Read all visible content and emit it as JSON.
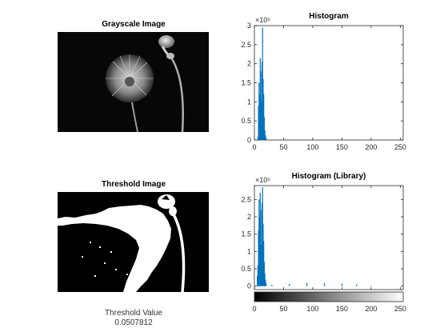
{
  "panels": {
    "grayscale_title": "Grayscale Image",
    "threshold_title": "Threshold Image",
    "threshold_value_label": "Threshold Value",
    "threshold_value": "0.0507812"
  },
  "chart_data": [
    {
      "type": "histogram",
      "title": "Histogram",
      "xlim": [
        0,
        255
      ],
      "ylim": [
        0,
        300000
      ],
      "x_ticks": [
        0,
        50,
        100,
        150,
        200,
        250
      ],
      "y_ticks": [
        0,
        0.5,
        1,
        1.5,
        2,
        2.5,
        3
      ],
      "y_exponent_label": "×10⁵",
      "bins": [
        {
          "x": 6,
          "y": 8000
        },
        {
          "x": 7,
          "y": 90000
        },
        {
          "x": 8,
          "y": 150000
        },
        {
          "x": 9,
          "y": 120000
        },
        {
          "x": 10,
          "y": 215000
        },
        {
          "x": 11,
          "y": 180000
        },
        {
          "x": 12,
          "y": 100000
        },
        {
          "x": 13,
          "y": 205000
        },
        {
          "x": 14,
          "y": 295000
        },
        {
          "x": 15,
          "y": 160000
        },
        {
          "x": 16,
          "y": 120000
        },
        {
          "x": 17,
          "y": 60000
        },
        {
          "x": 18,
          "y": 25000
        },
        {
          "x": 19,
          "y": 12000
        },
        {
          "x": 20,
          "y": 6000
        }
      ]
    },
    {
      "type": "histogram",
      "title": "Histogram (Library)",
      "xlim": [
        0,
        255
      ],
      "ylim": [
        -10000,
        290000
      ],
      "x_ticks": [
        0,
        50,
        100,
        150,
        200,
        250
      ],
      "y_ticks": [
        0,
        0.5,
        1,
        1.5,
        2,
        2.5
      ],
      "y_exponent_label": "×10⁵",
      "has_colorbar": true,
      "bins": [
        {
          "x": 5,
          "y": 30000
        },
        {
          "x": 6,
          "y": 60000
        },
        {
          "x": 7,
          "y": 160000
        },
        {
          "x": 8,
          "y": 250000
        },
        {
          "x": 9,
          "y": 200000
        },
        {
          "x": 10,
          "y": 270000
        },
        {
          "x": 11,
          "y": 220000
        },
        {
          "x": 12,
          "y": 120000
        },
        {
          "x": 13,
          "y": 240000
        },
        {
          "x": 14,
          "y": 285000
        },
        {
          "x": 15,
          "y": 180000
        },
        {
          "x": 16,
          "y": 130000
        },
        {
          "x": 17,
          "y": 70000
        },
        {
          "x": 18,
          "y": 35000
        },
        {
          "x": 19,
          "y": 18000
        },
        {
          "x": 20,
          "y": 9000
        },
        {
          "x": 30,
          "y": 4000
        },
        {
          "x": 60,
          "y": 6000
        },
        {
          "x": 90,
          "y": 9000
        },
        {
          "x": 120,
          "y": 9000
        },
        {
          "x": 150,
          "y": 7000
        },
        {
          "x": 175,
          "y": 5000
        },
        {
          "x": 200,
          "y": 2000
        }
      ]
    }
  ]
}
